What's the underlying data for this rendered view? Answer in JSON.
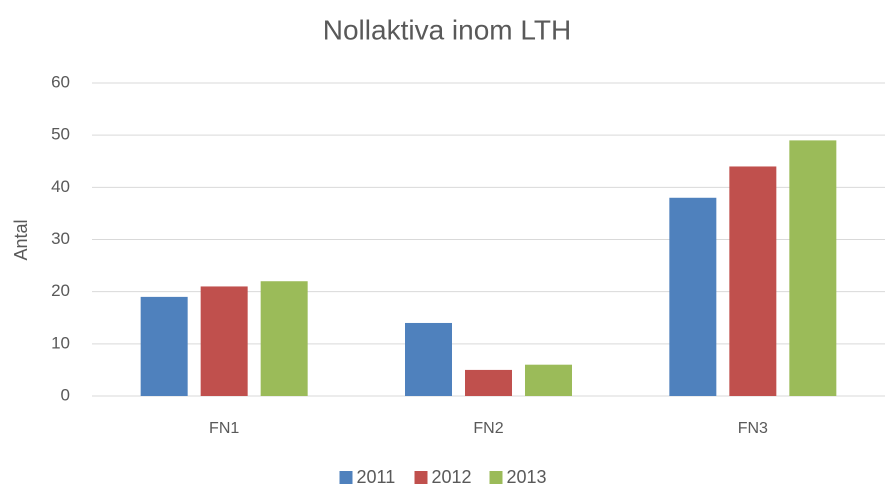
{
  "chart_data": {
    "type": "bar",
    "title": "Nollaktiva inom LTH",
    "y_label": "Antal",
    "categories": [
      "FN1",
      "FN2",
      "FN3"
    ],
    "series": [
      {
        "name": "2011",
        "color": "#4f81bd",
        "values": [
          19,
          14,
          38
        ]
      },
      {
        "name": "2012",
        "color": "#c0504d",
        "values": [
          21,
          5,
          44
        ]
      },
      {
        "name": "2013",
        "color": "#9bbb59",
        "values": [
          22,
          6,
          49
        ]
      }
    ],
    "ylim": [
      0,
      60
    ],
    "yticks": [
      0,
      10,
      20,
      30,
      40,
      50,
      60
    ],
    "grid": true,
    "legend": "bottom"
  }
}
